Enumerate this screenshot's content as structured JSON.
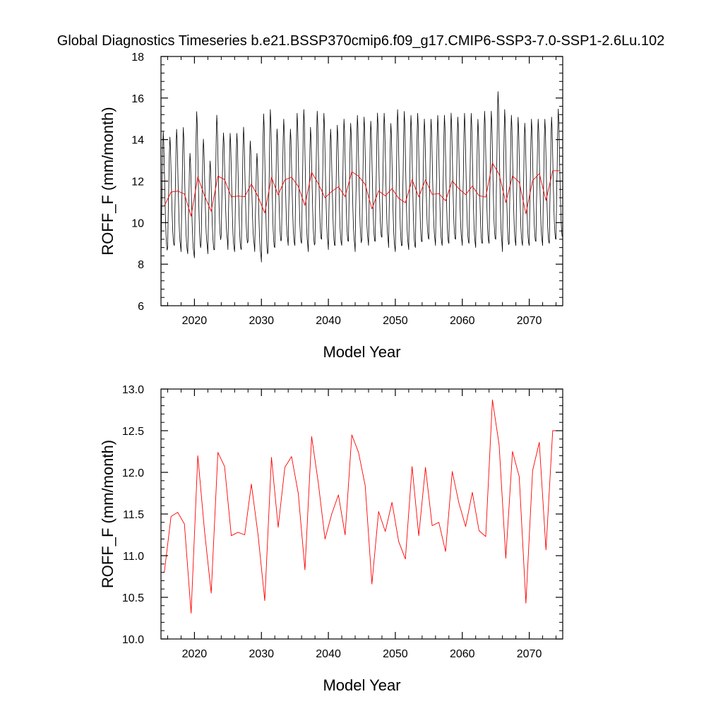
{
  "title": "Global Diagnostics Timeseries b.e21.BSSP370cmip6.f09_g17.CMIP6-SSP3-7.0-SSP1-2.6Lu.102",
  "chart_data": [
    {
      "type": "line",
      "xlabel": "Model Year",
      "ylabel": "ROFF_F (mm/month)",
      "xlim": [
        2015,
        2075
      ],
      "ylim": [
        6,
        18
      ],
      "xticks": [
        "2020",
        "2030",
        "2040",
        "2050",
        "2060",
        "2070"
      ],
      "yticks": [
        "6",
        "8",
        "10",
        "12",
        "14",
        "16",
        "18"
      ],
      "series": [
        {
          "color": "#000000",
          "style": "monthly",
          "peaks": [
            14.7,
            14.4,
            14.8,
            14.9,
            13.6,
            15.7,
            14.3,
            13.2,
            15.5,
            14.6,
            14.6,
            14.6,
            14.9,
            14.2,
            13.6,
            15.6,
            15.8,
            14.8,
            15.3,
            14.8,
            15.6,
            15.8,
            14.9,
            15.7,
            15.6,
            14.8,
            15.0,
            15.3,
            15.1,
            15.5,
            15.4,
            15.2,
            15.6,
            15.6,
            15.1,
            15.8,
            15.7,
            15.5,
            15.6,
            15.3,
            15.3,
            15.5,
            15.5,
            15.6,
            15.4,
            15.6,
            15.6,
            15.3,
            15.7,
            15.7,
            16.7,
            15.8,
            15.5,
            15.4,
            15.1,
            15.3,
            15.3,
            15.3,
            15.4,
            15.8
          ],
          "troughs": [
            8.3,
            8.8,
            8.9,
            8.6,
            8.5,
            8.3,
            9.0,
            8.5,
            8.7,
            9.4,
            8.7,
            8.6,
            8.7,
            9.1,
            8.6,
            8.1,
            8.6,
            8.8,
            9.2,
            8.9,
            8.9,
            9.0,
            8.6,
            9.0,
            9.2,
            8.7,
            8.9,
            8.9,
            9.1,
            8.6,
            9.2,
            8.9,
            9.1,
            9.3,
            8.8,
            8.6,
            8.9,
            8.7,
            8.8,
            9.1,
            9.2,
            8.9,
            8.9,
            9.0,
            9.2,
            8.9,
            9.0,
            8.8,
            9.0,
            9.0,
            9.2,
            8.6,
            9.0,
            8.9,
            8.9,
            8.9,
            9.1,
            8.9,
            9.0,
            9.2
          ]
        },
        {
          "color": "#ff0000",
          "style": "annual",
          "x": [
            2015.5,
            2016.5,
            2017.5,
            2018.5,
            2019.5,
            2020.5,
            2021.5,
            2022.5,
            2023.5,
            2024.5,
            2025.5,
            2026.5,
            2027.5,
            2028.5,
            2029.5,
            2030.5,
            2031.5,
            2032.5,
            2033.5,
            2034.5,
            2035.5,
            2036.5,
            2037.5,
            2038.5,
            2039.5,
            2040.5,
            2041.5,
            2042.5,
            2043.5,
            2044.5,
            2045.5,
            2046.5,
            2047.5,
            2048.5,
            2049.5,
            2050.5,
            2051.5,
            2052.5,
            2053.5,
            2054.5,
            2055.5,
            2056.5,
            2057.5,
            2058.5,
            2059.5,
            2060.5,
            2061.5,
            2062.5,
            2063.5,
            2064.5,
            2065.5,
            2066.5,
            2067.5,
            2068.5,
            2069.5,
            2070.5,
            2071.5,
            2072.5,
            2073.5,
            2074.5
          ],
          "values": [
            10.8,
            11.47,
            11.52,
            11.38,
            10.31,
            12.2,
            11.3,
            10.55,
            12.24,
            12.07,
            11.24,
            11.28,
            11.25,
            11.86,
            11.25,
            10.46,
            12.18,
            11.34,
            12.06,
            12.19,
            11.75,
            10.83,
            12.43,
            11.87,
            11.2,
            11.5,
            11.73,
            11.25,
            12.45,
            12.24,
            11.84,
            10.66,
            11.53,
            11.29,
            11.64,
            11.17,
            10.96,
            12.07,
            11.24,
            12.06,
            11.36,
            11.4,
            11.05,
            12.01,
            11.63,
            11.35,
            11.76,
            11.3,
            11.23,
            12.87,
            12.33,
            10.97,
            12.25,
            11.95,
            10.43,
            12.02,
            12.36,
            11.07,
            12.5,
            12.5
          ]
        }
      ]
    },
    {
      "type": "line",
      "xlabel": "Model Year",
      "ylabel": "ROFF_F (mm/month)",
      "xlim": [
        2015,
        2075
      ],
      "ylim": [
        10.0,
        13.0
      ],
      "xticks": [
        "2020",
        "2030",
        "2040",
        "2050",
        "2060",
        "2070"
      ],
      "yticks": [
        "10.0",
        "10.5",
        "11.0",
        "11.5",
        "12.0",
        "12.5",
        "13.0"
      ],
      "series": [
        {
          "color": "#ff0000",
          "style": "annual",
          "x": [
            2015.5,
            2016.5,
            2017.5,
            2018.5,
            2019.5,
            2020.5,
            2021.5,
            2022.5,
            2023.5,
            2024.5,
            2025.5,
            2026.5,
            2027.5,
            2028.5,
            2029.5,
            2030.5,
            2031.5,
            2032.5,
            2033.5,
            2034.5,
            2035.5,
            2036.5,
            2037.5,
            2038.5,
            2039.5,
            2040.5,
            2041.5,
            2042.5,
            2043.5,
            2044.5,
            2045.5,
            2046.5,
            2047.5,
            2048.5,
            2049.5,
            2050.5,
            2051.5,
            2052.5,
            2053.5,
            2054.5,
            2055.5,
            2056.5,
            2057.5,
            2058.5,
            2059.5,
            2060.5,
            2061.5,
            2062.5,
            2063.5,
            2064.5,
            2065.5,
            2066.5,
            2067.5,
            2068.5,
            2069.5,
            2070.5,
            2071.5,
            2072.5,
            2073.5,
            2074.5
          ],
          "values": [
            10.8,
            11.47,
            11.52,
            11.38,
            10.31,
            12.2,
            11.3,
            10.55,
            12.24,
            12.07,
            11.24,
            11.28,
            11.25,
            11.86,
            11.25,
            10.46,
            12.18,
            11.34,
            12.06,
            12.19,
            11.75,
            10.83,
            12.43,
            11.87,
            11.2,
            11.5,
            11.73,
            11.25,
            12.45,
            12.24,
            11.84,
            10.66,
            11.53,
            11.29,
            11.64,
            11.17,
            10.96,
            12.07,
            11.24,
            12.06,
            11.36,
            11.4,
            11.05,
            12.01,
            11.63,
            11.35,
            11.76,
            11.3,
            11.23,
            12.87,
            12.33,
            10.97,
            12.25,
            11.95,
            10.43,
            12.02,
            12.36,
            11.07,
            12.5,
            12.5
          ]
        }
      ]
    }
  ]
}
